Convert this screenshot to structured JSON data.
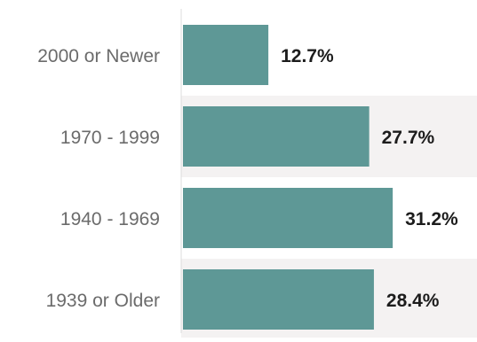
{
  "chart_data": {
    "type": "bar",
    "orientation": "horizontal",
    "categories": [
      "2000 or Newer",
      "1970 - 1999",
      "1940 - 1969",
      "1939 or Older"
    ],
    "values": [
      12.7,
      27.7,
      31.2,
      28.4
    ],
    "value_labels": [
      "12.7%",
      "27.7%",
      "31.2%",
      "28.4%"
    ],
    "xlim": [
      0,
      44
    ],
    "grid": false,
    "legend": "none"
  },
  "colors": {
    "bar": "#5e9896",
    "row_band": "#f4f2f2",
    "category_text": "#6b6b6b",
    "value_text": "#1c1c1c",
    "axis": "#dcdcdc"
  }
}
